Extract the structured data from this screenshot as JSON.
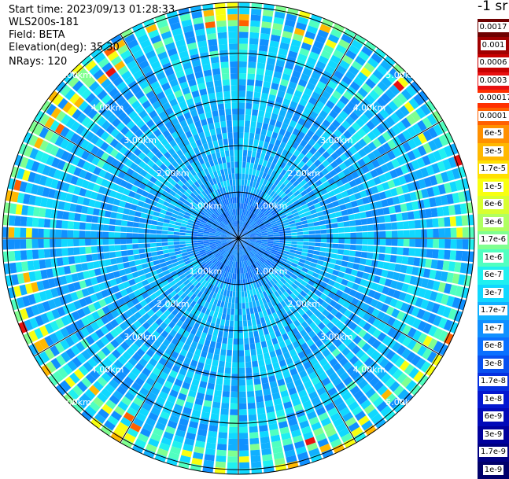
{
  "info": {
    "start_time": "Start time: 2023/09/13 01:28:33",
    "device": "WLS200s-181",
    "field": "Field: BETA",
    "elevation": "Elevation(deg): 35.30",
    "nrays": "NRays: 120"
  },
  "ppi": {
    "range_rings_km": [
      1,
      2,
      3,
      4,
      5
    ],
    "ring_labels": [
      "1.00km",
      "2.00km",
      "3.00km",
      "4.00km",
      "5.00km"
    ],
    "spoke_count": 12,
    "ray_count": 120
  },
  "colorbar": {
    "unit": "-1 sr",
    "labels": [
      "0.0017",
      "0.001",
      "0.0006",
      "0.0003",
      "0.00017",
      "0.0001",
      "6e-5",
      "3e-5",
      "1.7e-5",
      "1e-5",
      "6e-6",
      "3e-6",
      "1.7e-6",
      "1e-6",
      "6e-7",
      "3e-7",
      "1.7e-7",
      "1e-7",
      "6e-8",
      "3e-8",
      "1.7e-8",
      "1e-8",
      "6e-9",
      "3e-9",
      "1.7e-9",
      "1e-9"
    ],
    "colors": [
      "#6e0000",
      "#a00000",
      "#c80000",
      "#e81010",
      "#ff3000",
      "#ff6000",
      "#ff9000",
      "#ffb800",
      "#ffe000",
      "#f8ff10",
      "#d8ff30",
      "#b0ff60",
      "#80ff90",
      "#50ffc0",
      "#20f0f0",
      "#10d8ff",
      "#10b0ff",
      "#1090ff",
      "#0a70ff",
      "#0850f0",
      "#0630e0",
      "#0418d0",
      "#020ab8",
      "#00009c",
      "#000082",
      "#00006a"
    ]
  }
}
